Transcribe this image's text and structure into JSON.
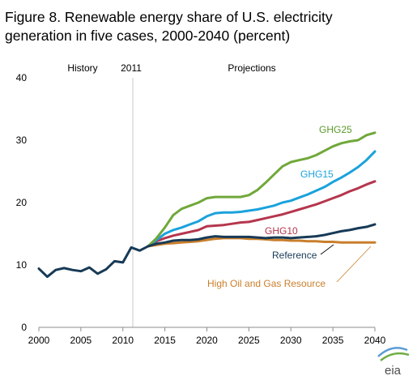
{
  "chart_data": {
    "type": "line",
    "title_line1": "Figure 8. Renewable energy share of U.S. electricity",
    "title_line2": "generation in five cases, 2000-2040 (percent)",
    "xlabel": "",
    "ylabel": "",
    "xlim": [
      2000,
      2040
    ],
    "ylim": [
      0,
      40
    ],
    "x_ticks": [
      2000,
      2005,
      2010,
      2015,
      2020,
      2025,
      2030,
      2035,
      2040
    ],
    "y_ticks": [
      0,
      10,
      20,
      30,
      40
    ],
    "grid": false,
    "divider_year": 2011.5,
    "annotations": {
      "history": "History",
      "year_2011": "2011",
      "projections": "Projections"
    },
    "history": {
      "x": [
        2000,
        2001,
        2002,
        2003,
        2004,
        2005,
        2006,
        2007,
        2008,
        2009,
        2010,
        2011,
        2012,
        2013
      ],
      "values": [
        9.4,
        8.1,
        9.2,
        9.5,
        9.2,
        9.0,
        9.6,
        8.6,
        9.3,
        10.6,
        10.4,
        12.8,
        12.3,
        13.0
      ],
      "color": "#173a56"
    },
    "series": [
      {
        "name": "GHG25",
        "color": "#70a83a",
        "label_color": "#5a9a2a",
        "x": [
          2013,
          2014,
          2015,
          2016,
          2017,
          2018,
          2019,
          2020,
          2021,
          2022,
          2023,
          2024,
          2025,
          2026,
          2027,
          2028,
          2029,
          2030,
          2031,
          2032,
          2033,
          2034,
          2035,
          2036,
          2037,
          2038,
          2039,
          2040
        ],
        "values": [
          13.0,
          14.3,
          16.0,
          18.0,
          19.0,
          19.5,
          20.0,
          20.7,
          20.9,
          20.9,
          20.9,
          20.9,
          21.2,
          22.0,
          23.2,
          24.5,
          25.8,
          26.5,
          26.8,
          27.1,
          27.6,
          28.3,
          29.0,
          29.5,
          29.8,
          30.0,
          30.8,
          31.2
        ]
      },
      {
        "name": "GHG15",
        "color": "#1aa2dc",
        "label_color": "#1aa2dc",
        "x": [
          2013,
          2014,
          2015,
          2016,
          2017,
          2018,
          2019,
          2020,
          2021,
          2022,
          2023,
          2024,
          2025,
          2026,
          2027,
          2028,
          2029,
          2030,
          2031,
          2032,
          2033,
          2034,
          2035,
          2036,
          2037,
          2038,
          2039,
          2040
        ],
        "values": [
          13.0,
          14.0,
          15.0,
          15.6,
          16.0,
          16.5,
          17.0,
          17.8,
          18.3,
          18.4,
          18.4,
          18.5,
          18.7,
          18.9,
          19.2,
          19.5,
          20.0,
          20.3,
          20.8,
          21.3,
          21.9,
          22.5,
          23.3,
          24.0,
          24.8,
          25.7,
          26.8,
          28.2
        ]
      },
      {
        "name": "GHG10",
        "color": "#b5364d",
        "label_color": "#b5364d",
        "x": [
          2013,
          2014,
          2015,
          2016,
          2017,
          2018,
          2019,
          2020,
          2021,
          2022,
          2023,
          2024,
          2025,
          2026,
          2027,
          2028,
          2029,
          2030,
          2031,
          2032,
          2033,
          2034,
          2035,
          2036,
          2037,
          2038,
          2039,
          2040
        ],
        "values": [
          13.0,
          13.8,
          14.3,
          14.7,
          15.0,
          15.3,
          15.6,
          16.2,
          16.3,
          16.4,
          16.6,
          16.8,
          16.9,
          17.2,
          17.5,
          17.8,
          18.1,
          18.5,
          18.9,
          19.3,
          19.7,
          20.2,
          20.7,
          21.2,
          21.8,
          22.3,
          22.9,
          23.4
        ]
      },
      {
        "name": "Reference",
        "color": "#173a56",
        "label_color": "#173a56",
        "x": [
          2013,
          2014,
          2015,
          2016,
          2017,
          2018,
          2019,
          2020,
          2021,
          2022,
          2023,
          2024,
          2025,
          2026,
          2027,
          2028,
          2029,
          2030,
          2031,
          2032,
          2033,
          2034,
          2035,
          2036,
          2037,
          2038,
          2039,
          2040
        ],
        "values": [
          13.0,
          13.4,
          13.6,
          13.9,
          14.0,
          14.0,
          14.1,
          14.4,
          14.6,
          14.5,
          14.5,
          14.5,
          14.5,
          14.4,
          14.3,
          14.4,
          14.4,
          14.3,
          14.4,
          14.5,
          14.6,
          14.8,
          15.1,
          15.4,
          15.6,
          15.9,
          16.1,
          16.5
        ]
      },
      {
        "name": "High Oil and Gas Resource",
        "color": "#c97f2c",
        "label_color": "#c97f2c",
        "x": [
          2013,
          2014,
          2015,
          2016,
          2017,
          2018,
          2019,
          2020,
          2021,
          2022,
          2023,
          2024,
          2025,
          2026,
          2027,
          2028,
          2029,
          2030,
          2031,
          2032,
          2033,
          2034,
          2035,
          2036,
          2037,
          2038,
          2039,
          2040
        ],
        "values": [
          13.0,
          13.2,
          13.4,
          13.5,
          13.6,
          13.7,
          13.8,
          14.0,
          14.2,
          14.3,
          14.3,
          14.3,
          14.2,
          14.2,
          14.1,
          14.0,
          14.0,
          13.9,
          13.9,
          13.8,
          13.8,
          13.7,
          13.7,
          13.6,
          13.6,
          13.6,
          13.6,
          13.6
        ]
      }
    ]
  },
  "logo": {
    "text": "eia",
    "colors": [
      "#5b9bd5",
      "#70ad47",
      "#1f4e79"
    ]
  }
}
